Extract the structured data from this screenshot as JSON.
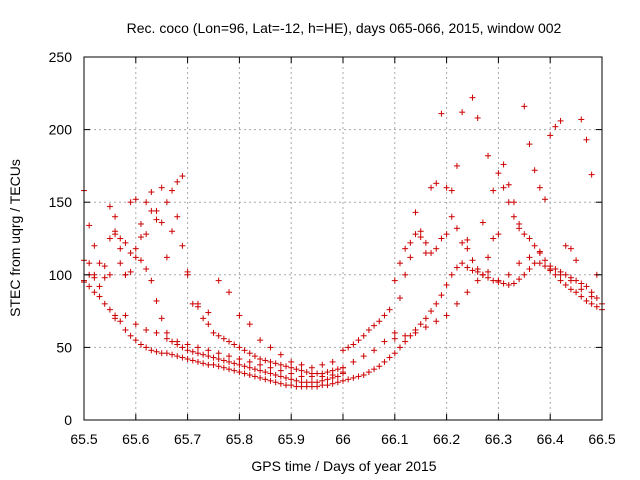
{
  "chart_data": {
    "type": "scatter",
    "title": "Rec. coco (Lon=96, Lat=-12, h=HE), days 065-066, 2015, window 002",
    "xlabel": "GPS time / Days of year 2015",
    "ylabel": "STEC from uqrg / TECUs",
    "xlim": [
      65.5,
      66.5
    ],
    "ylim": [
      0,
      250
    ],
    "xticks": [
      "65.5",
      "65.6",
      "65.7",
      "65.8",
      "65.9",
      "66",
      "66.1",
      "66.2",
      "66.3",
      "66.4",
      "66.5"
    ],
    "yticks": [
      "0",
      "50",
      "100",
      "150",
      "200",
      "250"
    ],
    "grid": true,
    "marker": "plus",
    "color": "#cc0000",
    "series": [
      {
        "x": [
          65.5,
          65.5,
          65.51,
          65.51,
          65.52,
          65.52,
          65.53,
          65.54,
          65.55,
          65.56,
          65.57,
          65.58,
          65.59,
          65.6,
          65.61,
          65.62,
          65.63,
          65.64,
          65.65,
          65.66,
          65.67,
          65.68,
          65.69,
          65.7,
          65.71,
          65.72,
          65.73,
          65.74,
          65.75,
          65.76,
          65.77,
          65.78,
          65.79,
          65.8,
          65.81,
          65.82,
          65.83,
          65.84,
          65.85,
          65.86,
          65.87,
          65.88,
          65.89,
          65.9,
          65.91,
          65.92,
          65.93,
          65.94,
          65.95,
          65.96,
          65.97,
          65.98,
          65.99,
          66,
          66.01,
          66.02,
          66.03,
          66.04,
          66.05,
          66.06,
          66.07,
          66.08,
          66.09,
          66.1,
          66.11,
          66.12,
          66.13,
          66.14,
          66.15,
          66.16,
          66.17,
          66.18,
          66.19,
          66.2,
          66.21,
          66.22,
          66.23,
          66.24,
          66.25,
          66.26,
          66.27,
          66.28,
          66.29,
          66.3,
          66.31,
          66.32,
          66.33,
          66.34,
          66.35,
          66.36,
          66.37,
          66.38,
          66.39,
          66.4,
          66.41,
          66.42,
          66.43,
          66.44,
          66.45,
          66.46,
          66.47,
          66.48,
          66.49,
          66.5
        ],
        "y": [
          95,
          110,
          92,
          100,
          88,
          98,
          85,
          80,
          76,
          72,
          68,
          62,
          58,
          55,
          52,
          50,
          48,
          47,
          46,
          46,
          45,
          44,
          43,
          42,
          41,
          40,
          39,
          38,
          38,
          37,
          36,
          35,
          34,
          33,
          32,
          31,
          30,
          29,
          28,
          27,
          26,
          25,
          24,
          24,
          23,
          23,
          23,
          23,
          23,
          24,
          24,
          25,
          26,
          27,
          28,
          29,
          30,
          31,
          33,
          35,
          37,
          40,
          43,
          46,
          50,
          54,
          58,
          62,
          66,
          70,
          75,
          80,
          86,
          93,
          100,
          105,
          108,
          105,
          103,
          102,
          100,
          98,
          96,
          95,
          94,
          93,
          94,
          97,
          100,
          104,
          108,
          108,
          106,
          103,
          100,
          96,
          93,
          90,
          88,
          85,
          82,
          80,
          78,
          76
        ],
        "name": ""
      },
      {
        "x": [
          65.5,
          65.51,
          65.52,
          65.53,
          65.54,
          65.55,
          65.56,
          65.57,
          65.58,
          65.59,
          65.6,
          65.61,
          65.62,
          65.63,
          65.64,
          65.65,
          65.66,
          65.67,
          65.68,
          65.69,
          65.7,
          65.71,
          65.72,
          65.73,
          65.74,
          65.75,
          65.76,
          65.77,
          65.78,
          65.79,
          65.8,
          65.81,
          65.82,
          65.83,
          65.84,
          65.85,
          65.86,
          65.87,
          65.88,
          65.89,
          65.9,
          65.91,
          65.92,
          65.93,
          65.94,
          65.95,
          65.96,
          65.97,
          65.98,
          65.99,
          66
        ],
        "y": [
          158,
          134,
          120,
          108,
          106,
          147,
          140,
          125,
          122,
          115,
          112,
          110,
          104,
          96,
          82,
          70,
          60,
          54,
          52,
          50,
          48,
          47,
          46,
          45,
          44,
          43,
          42,
          41,
          40,
          39,
          38,
          37,
          36,
          35,
          34,
          33,
          32,
          31,
          30,
          29,
          28,
          27,
          26,
          26,
          26,
          26,
          27,
          28,
          29,
          30,
          32
        ],
        "name": ""
      },
      {
        "x": [
          65.55,
          65.56,
          65.57,
          65.58,
          65.59,
          65.6,
          65.61,
          65.62,
          65.63,
          65.64,
          65.65,
          65.66,
          65.67,
          65.68,
          65.69,
          65.7,
          65.71,
          65.72,
          65.73,
          65.74,
          65.75,
          65.76,
          65.77,
          65.78,
          65.79,
          65.8,
          65.81,
          65.82,
          65.83,
          65.84,
          65.85,
          65.86,
          65.87,
          65.88,
          65.89,
          65.9,
          65.91,
          65.92,
          65.93,
          65.94,
          65.95,
          65.96,
          65.97,
          65.98,
          65.99,
          66
        ],
        "y": [
          125,
          130,
          108,
          100,
          150,
          152,
          135,
          128,
          157,
          144,
          160,
          150,
          158,
          164,
          168,
          102,
          80,
          78,
          70,
          66,
          60,
          58,
          56,
          54,
          52,
          50,
          48,
          46,
          44,
          42,
          41,
          40,
          39,
          38,
          37,
          36,
          35,
          34,
          33,
          32,
          32,
          32,
          33,
          34,
          35,
          36
        ],
        "name": ""
      },
      {
        "x": [
          65.56,
          65.58,
          65.6,
          65.62,
          65.64,
          65.66,
          65.68,
          65.7,
          65.72,
          65.74,
          65.76,
          65.78,
          65.8,
          65.82,
          65.84,
          65.86,
          65.88,
          65.9,
          65.92,
          65.94,
          65.96,
          65.98,
          66
        ],
        "y": [
          70,
          72,
          66,
          62,
          60,
          56,
          54,
          52,
          50,
          48,
          46,
          44,
          42,
          40,
          38,
          36,
          34,
          32,
          30,
          30,
          30,
          31,
          33
        ],
        "name": ""
      },
      {
        "x": [
          65.72,
          65.74,
          65.76,
          65.78,
          65.8,
          65.82,
          65.84,
          65.86,
          65.88,
          65.9,
          65.92,
          65.94,
          65.96,
          65.98
        ],
        "y": [
          80,
          74,
          96,
          88,
          72,
          66,
          55,
          50,
          45,
          40,
          38,
          36,
          38,
          40
        ],
        "name": ""
      },
      {
        "x": [
          66,
          66.01,
          66.02,
          66.03,
          66.04,
          66.05,
          66.06,
          66.07,
          66.08,
          66.09,
          66.1,
          66.11,
          66.12,
          66.13,
          66.14,
          66.15,
          66.16,
          66.17,
          66.18,
          66.19,
          66.2,
          66.21,
          66.22,
          66.23,
          66.24,
          66.25,
          66.26,
          66.27,
          66.28,
          66.29,
          66.3,
          66.31,
          66.32,
          66.33,
          66.34,
          66.35,
          66.36,
          66.37,
          66.38,
          66.39,
          66.4,
          66.41,
          66.42,
          66.43,
          66.44,
          66.45,
          66.46,
          66.47,
          66.48,
          66.49
        ],
        "y": [
          48,
          50,
          52,
          55,
          58,
          62,
          65,
          68,
          72,
          76,
          96,
          108,
          118,
          122,
          128,
          130,
          122,
          115,
          118,
          125,
          128,
          140,
          132,
          122,
          118,
          110,
          104,
          100,
          112,
          125,
          128,
          160,
          150,
          140,
          132,
          128,
          125,
          120,
          115,
          110,
          106,
          104,
          102,
          100,
          98,
          96,
          94,
          92,
          88,
          84
        ],
        "name": ""
      },
      {
        "x": [
          66.1,
          66.11,
          66.12,
          66.13,
          66.14,
          66.15,
          66.16,
          66.17,
          66.18,
          66.19,
          66.2,
          66.21,
          66.22,
          66.23,
          66.24,
          66.25,
          66.26,
          66.27,
          66.28,
          66.29,
          66.3,
          66.31,
          66.32,
          66.33,
          66.34,
          66.35,
          66.36,
          66.37,
          66.38,
          66.39,
          66.4,
          66.41,
          66.42,
          66.43,
          66.44,
          66.45,
          66.46,
          66.47,
          66.48,
          66.49
        ],
        "y": [
          60,
          84,
          100,
          112,
          143,
          126,
          115,
          160,
          163,
          211,
          160,
          158,
          175,
          212,
          124,
          222,
          208,
          136,
          182,
          158,
          170,
          176,
          162,
          150,
          135,
          216,
          190,
          172,
          160,
          152,
          196,
          202,
          206,
          120,
          118,
          110,
          207,
          193,
          169,
          100
        ],
        "name": ""
      },
      {
        "x": [
          65.5,
          65.51,
          65.52,
          65.53,
          65.54,
          65.55,
          65.56,
          65.57,
          65.58,
          65.59,
          65.6,
          65.61,
          65.62,
          65.63,
          65.64,
          65.65,
          65.66,
          65.67,
          65.68,
          65.69,
          65.7
        ],
        "y": [
          96,
          108,
          100,
          92,
          98,
          100,
          128,
          118,
          100,
          102,
          118,
          126,
          150,
          144,
          138,
          136,
          112,
          130,
          140,
          120,
          100
        ],
        "name": ""
      },
      {
        "x": [
          66,
          66.02,
          66.04,
          66.06,
          66.08,
          66.1,
          66.12,
          66.14,
          66.16,
          66.18,
          66.2,
          66.22,
          66.24,
          66.26,
          66.28,
          66.3,
          66.32,
          66.34,
          66.36,
          66.38,
          66.4,
          66.42,
          66.44,
          66.46,
          66.48,
          66.5
        ],
        "y": [
          36,
          40,
          44,
          48,
          54,
          56,
          58,
          60,
          64,
          68,
          72,
          80,
          88,
          96,
          102,
          96,
          100,
          108,
          112,
          116,
          104,
          100,
          96,
          90,
          85,
          80
        ],
        "name": ""
      }
    ]
  }
}
